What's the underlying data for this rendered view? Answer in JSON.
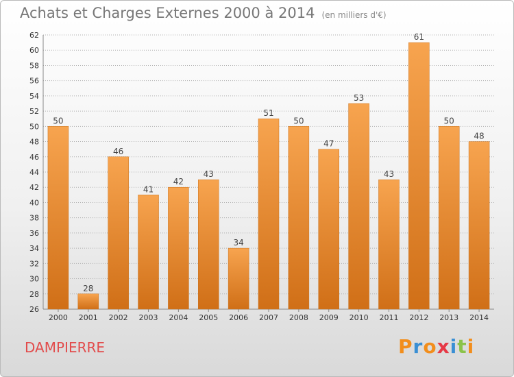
{
  "header": {
    "title": "Achats et Charges Externes 2000 à 2014",
    "subtitle": "(en milliers d'€)"
  },
  "footer": {
    "commune": "DAMPIERRE",
    "logo": "Proxiti"
  },
  "colors": {
    "bar_light": "#f7a44f",
    "bar_dark": "#d06f17",
    "commune_text": "#e24b4b",
    "logo_letters": [
      "#f28e1c",
      "#3a8fd4",
      "#f28e1c",
      "#e63946",
      "#3a8fd4",
      "#8bc34a",
      "#f28e1c"
    ]
  },
  "chart_data": {
    "type": "bar",
    "title": "Achats et Charges Externes 2000 à 2014",
    "subtitle": "(en milliers d'€)",
    "categories": [
      "2000",
      "2001",
      "2002",
      "2003",
      "2004",
      "2005",
      "2006",
      "2007",
      "2008",
      "2009",
      "2010",
      "2011",
      "2012",
      "2013",
      "2014"
    ],
    "values": [
      50,
      28,
      46,
      41,
      42,
      43,
      34,
      51,
      50,
      47,
      53,
      43,
      61,
      50,
      48
    ],
    "ylim": [
      26,
      62
    ],
    "yticks": [
      26,
      28,
      30,
      32,
      34,
      36,
      38,
      40,
      42,
      44,
      46,
      48,
      50,
      52,
      54,
      56,
      58,
      60,
      62
    ],
    "grid": true,
    "xlabel": "",
    "ylabel": ""
  }
}
